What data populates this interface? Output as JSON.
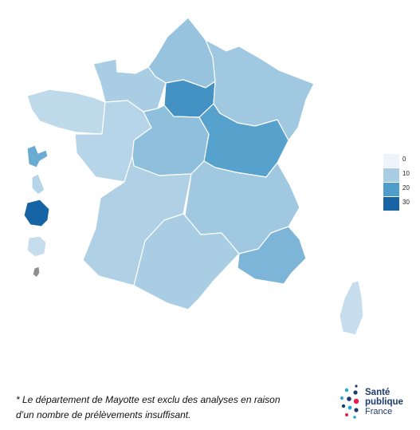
{
  "regions": [
    {
      "name": "Hauts-de-France",
      "value": 12
    },
    {
      "name": "Normandie",
      "value": 10
    },
    {
      "name": "Île-de-France",
      "value": 22
    },
    {
      "name": "Grand Est",
      "value": 11
    },
    {
      "name": "Bretagne",
      "value": 7
    },
    {
      "name": "Pays de la Loire",
      "value": 8
    },
    {
      "name": "Centre-Val de Loire",
      "value": 13
    },
    {
      "name": "Bourgogne-Franche-Comté",
      "value": 19
    },
    {
      "name": "Nouvelle-Aquitaine",
      "value": 9
    },
    {
      "name": "Auvergne-Rhône-Alpes",
      "value": 11
    },
    {
      "name": "Occitanie",
      "value": 10
    },
    {
      "name": "Provence-Alpes-Côte d'Azur",
      "value": 15
    },
    {
      "name": "Corse",
      "value": 6
    },
    {
      "name": "Guadeloupe",
      "value": 17
    },
    {
      "name": "Martinique",
      "value": 8
    },
    {
      "name": "Guyane",
      "value": 32
    },
    {
      "name": "La Réunion",
      "value": 6
    },
    {
      "name": "Mayotte",
      "value": null
    }
  ],
  "colors": {
    "scale": [
      "#eef4fb",
      "#a9cde3",
      "#4e9dcb",
      "#1764a4"
    ],
    "no_data": "#8f8f8f",
    "logo_blue": "#1d3a6e",
    "logo_red": "#e2204a",
    "logo_cyan": "#1fa8e0"
  },
  "legend": {
    "items": [
      {
        "label": "0"
      },
      {
        "label": "10"
      },
      {
        "label": "20"
      },
      {
        "label": "30"
      }
    ]
  },
  "footnote": {
    "line1": "* Le département de Mayotte est exclu des analyses en raison",
    "line2": "d’un nombre de prélèvements insuffisant."
  },
  "logo": {
    "line1": "Santé",
    "line2": "publique",
    "line3": "France"
  }
}
